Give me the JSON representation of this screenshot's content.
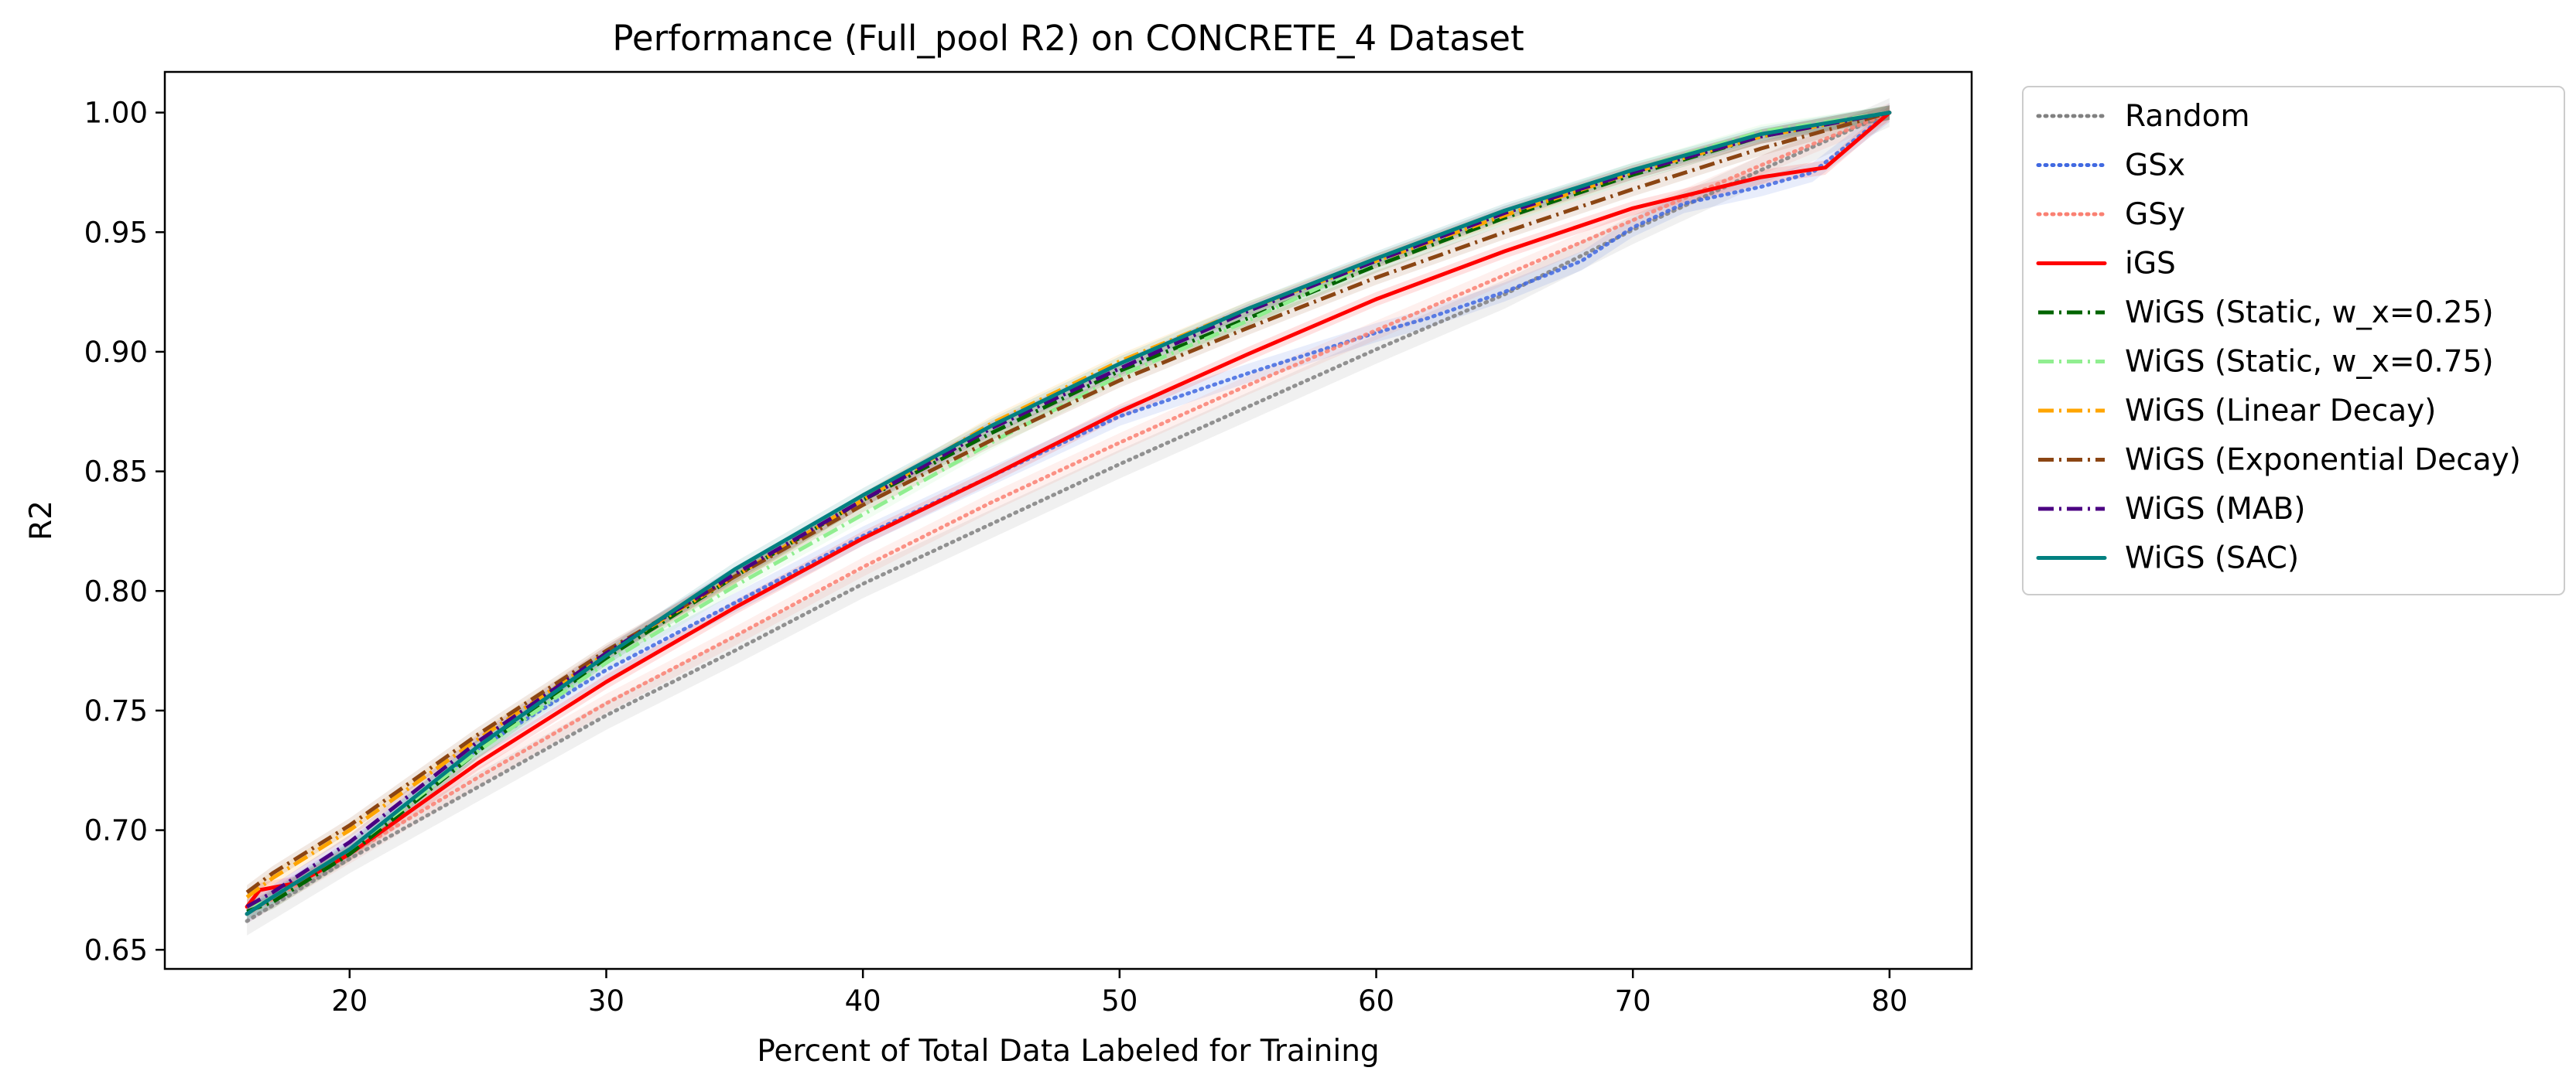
{
  "chart_data": {
    "type": "line",
    "title": "Performance (Full_pool R2) on CONCRETE_4 Dataset",
    "xlabel": "Percent of Total Data Labeled for Training",
    "ylabel": "R2",
    "xlim": [
      12.8,
      83.2
    ],
    "ylim": [
      0.642,
      1.017
    ],
    "xticks": [
      20,
      30,
      40,
      50,
      60,
      70,
      80
    ],
    "yticks": [
      0.65,
      0.7,
      0.75,
      0.8,
      0.85,
      0.9,
      0.95,
      1.0
    ],
    "xtick_labels": [
      "20",
      "30",
      "40",
      "50",
      "60",
      "70",
      "80"
    ],
    "ytick_labels": [
      "0.65",
      "0.70",
      "0.75",
      "0.80",
      "0.85",
      "0.90",
      "0.95",
      "1.00"
    ],
    "grid": false,
    "legend_position": "outside right, top",
    "series": [
      {
        "name": "Random",
        "color": "#808080",
        "dash": "dotted",
        "band": 0.006,
        "x": [
          16,
          20,
          25,
          30,
          35,
          40,
          45,
          50,
          55,
          60,
          65,
          70,
          75,
          80
        ],
        "y": [
          0.662,
          0.688,
          0.718,
          0.748,
          0.775,
          0.803,
          0.828,
          0.853,
          0.877,
          0.901,
          0.924,
          0.951,
          0.976,
          1.0
        ]
      },
      {
        "name": "GSx",
        "color": "#4169e1",
        "dash": "dotted",
        "band": 0.004,
        "x": [
          16,
          20,
          25,
          30,
          35,
          40,
          45,
          50,
          55,
          60,
          62,
          65,
          68,
          70,
          72,
          75,
          77,
          80
        ],
        "y": [
          0.665,
          0.692,
          0.734,
          0.767,
          0.795,
          0.823,
          0.848,
          0.873,
          0.891,
          0.908,
          0.914,
          0.925,
          0.938,
          0.952,
          0.962,
          0.969,
          0.975,
          1.0
        ]
      },
      {
        "name": "GSy",
        "color": "#fa8072",
        "dash": "dotted",
        "band": 0.004,
        "x": [
          16,
          20,
          25,
          30,
          35,
          40,
          45,
          50,
          55,
          60,
          65,
          70,
          75,
          80
        ],
        "y": [
          0.665,
          0.69,
          0.722,
          0.753,
          0.781,
          0.81,
          0.837,
          0.862,
          0.886,
          0.909,
          0.932,
          0.955,
          0.978,
          1.0
        ]
      },
      {
        "name": "iGS",
        "color": "#ff0000",
        "dash": "solid",
        "band": 0.003,
        "x": [
          16,
          16.5,
          18,
          20,
          25,
          30,
          35,
          40,
          45,
          50,
          55,
          60,
          65,
          70,
          75,
          77.5,
          80
        ],
        "y": [
          0.668,
          0.675,
          0.678,
          0.69,
          0.728,
          0.762,
          0.793,
          0.822,
          0.848,
          0.875,
          0.899,
          0.922,
          0.942,
          0.96,
          0.973,
          0.977,
          1.0
        ]
      },
      {
        "name": "WiGS (Static, w_x=0.25)",
        "color": "#006400",
        "dash": "dashdot",
        "band": 0.003,
        "x": [
          16,
          17,
          20,
          25,
          30,
          35,
          40,
          45,
          50,
          55,
          60,
          65,
          70,
          75,
          80
        ],
        "y": [
          0.666,
          0.67,
          0.69,
          0.733,
          0.772,
          0.806,
          0.838,
          0.866,
          0.892,
          0.914,
          0.936,
          0.956,
          0.974,
          0.99,
          1.0
        ]
      },
      {
        "name": "WiGS (Static, w_x=0.75)",
        "color": "#90ee90",
        "dash": "dashdot",
        "band": 0.003,
        "x": [
          16,
          17,
          20,
          25,
          30,
          35,
          40,
          45,
          50,
          55,
          60,
          65,
          70,
          75,
          80
        ],
        "y": [
          0.668,
          0.672,
          0.692,
          0.733,
          0.77,
          0.802,
          0.832,
          0.862,
          0.89,
          0.913,
          0.938,
          0.958,
          0.976,
          0.992,
          1.0
        ]
      },
      {
        "name": "WiGS (Linear Decay)",
        "color": "#ffa500",
        "dash": "dashdot",
        "band": 0.003,
        "x": [
          16,
          17,
          20,
          25,
          30,
          35,
          40,
          45,
          50,
          55,
          60,
          65,
          70,
          75,
          80
        ],
        "y": [
          0.672,
          0.68,
          0.7,
          0.738,
          0.774,
          0.806,
          0.838,
          0.87,
          0.896,
          0.918,
          0.938,
          0.957,
          0.975,
          0.99,
          1.0
        ]
      },
      {
        "name": "WiGS (Exponential Decay)",
        "color": "#8b4513",
        "dash": "dashdot",
        "band": 0.003,
        "x": [
          16,
          17,
          20,
          25,
          30,
          35,
          40,
          45,
          50,
          55,
          60,
          65,
          70,
          75,
          80
        ],
        "y": [
          0.674,
          0.682,
          0.702,
          0.74,
          0.775,
          0.806,
          0.836,
          0.863,
          0.888,
          0.91,
          0.931,
          0.95,
          0.968,
          0.985,
          1.0
        ]
      },
      {
        "name": "WiGS (MAB)",
        "color": "#4b0082",
        "dash": "dashdot",
        "band": 0.003,
        "x": [
          16,
          17,
          20,
          25,
          30,
          35,
          40,
          45,
          50,
          55,
          60,
          65,
          70,
          75,
          80
        ],
        "y": [
          0.668,
          0.674,
          0.695,
          0.737,
          0.774,
          0.807,
          0.838,
          0.868,
          0.893,
          0.917,
          0.938,
          0.958,
          0.975,
          0.99,
          1.0
        ]
      },
      {
        "name": "WiGS (SAC)",
        "color": "#008080",
        "dash": "solid",
        "band": 0.003,
        "x": [
          16,
          17,
          20,
          25,
          30,
          35,
          40,
          45,
          50,
          55,
          60,
          65,
          70,
          75,
          80
        ],
        "y": [
          0.665,
          0.672,
          0.692,
          0.735,
          0.773,
          0.809,
          0.84,
          0.869,
          0.895,
          0.918,
          0.939,
          0.959,
          0.976,
          0.991,
          1.0
        ]
      }
    ]
  }
}
